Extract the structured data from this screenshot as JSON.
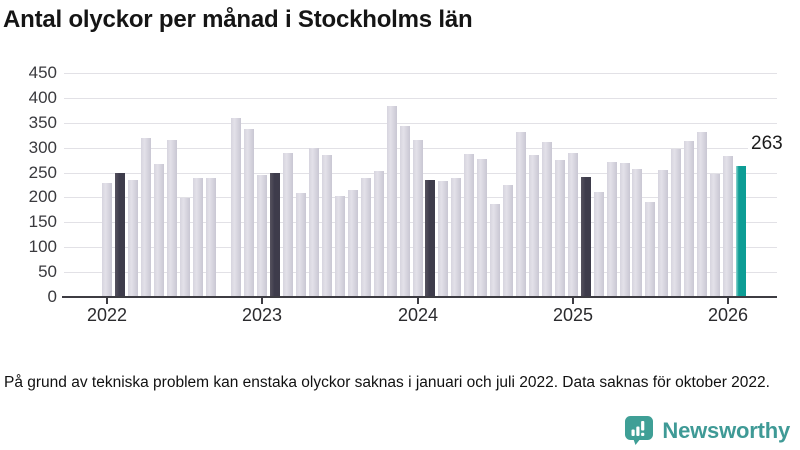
{
  "title": "Antal olyckor per månad i Stockholms län",
  "footnote": "På grund av tekniska problem kan enstaka olyckor saknas i januari och juli 2022. Data saknas för oktober 2022.",
  "annotation": {
    "value_label": "263"
  },
  "brand": {
    "name": "Newsworthy",
    "color": "#3f9a96",
    "icon": "bar-chart-speech-bubble-icon"
  },
  "colors": {
    "bar_default": "#cac8d4",
    "bar_highlight_dark": "#3e3c4b",
    "bar_latest_teal": "#0d9d95",
    "gridline": "#e2e1e6",
    "axis": "#3d3c42"
  },
  "chart_data": {
    "type": "bar",
    "title": "Antal olyckor per månad i Stockholms län",
    "xlabel": "",
    "ylabel": "",
    "ylim": [
      0,
      450
    ],
    "y_ticks": [
      0,
      50,
      100,
      150,
      200,
      250,
      300,
      350,
      400,
      450
    ],
    "grid": true,
    "x_tick_labels": [
      "2022",
      "2023",
      "2024",
      "2025",
      "2026"
    ],
    "legend": "none",
    "annotated_point": {
      "month": "2026-02",
      "value": 263
    },
    "months": [
      {
        "month": "2022-01",
        "value": 230
      },
      {
        "month": "2022-02",
        "value": 249,
        "highlight": "dark"
      },
      {
        "month": "2022-03",
        "value": 235
      },
      {
        "month": "2022-04",
        "value": 320
      },
      {
        "month": "2022-05",
        "value": 267
      },
      {
        "month": "2022-06",
        "value": 315
      },
      {
        "month": "2022-07",
        "value": 198
      },
      {
        "month": "2022-08",
        "value": 240
      },
      {
        "month": "2022-09",
        "value": 239
      },
      {
        "month": "2022-10",
        "value": null,
        "missing": true
      },
      {
        "month": "2022-11",
        "value": 360
      },
      {
        "month": "2022-12",
        "value": 338
      },
      {
        "month": "2023-01",
        "value": 245
      },
      {
        "month": "2023-02",
        "value": 249,
        "highlight": "dark"
      },
      {
        "month": "2023-03",
        "value": 290
      },
      {
        "month": "2023-04",
        "value": 209
      },
      {
        "month": "2023-05",
        "value": 299
      },
      {
        "month": "2023-06",
        "value": 286
      },
      {
        "month": "2023-07",
        "value": 202
      },
      {
        "month": "2023-08",
        "value": 214
      },
      {
        "month": "2023-09",
        "value": 239
      },
      {
        "month": "2023-10",
        "value": 253
      },
      {
        "month": "2023-11",
        "value": 383
      },
      {
        "month": "2023-12",
        "value": 343
      },
      {
        "month": "2024-01",
        "value": 315
      },
      {
        "month": "2024-02",
        "value": 236,
        "highlight": "dark"
      },
      {
        "month": "2024-03",
        "value": 233
      },
      {
        "month": "2024-04",
        "value": 239
      },
      {
        "month": "2024-05",
        "value": 287
      },
      {
        "month": "2024-06",
        "value": 277
      },
      {
        "month": "2024-07",
        "value": 186
      },
      {
        "month": "2024-08",
        "value": 224
      },
      {
        "month": "2024-09",
        "value": 331
      },
      {
        "month": "2024-10",
        "value": 285
      },
      {
        "month": "2024-11",
        "value": 311
      },
      {
        "month": "2024-12",
        "value": 275
      },
      {
        "month": "2025-01",
        "value": 289
      },
      {
        "month": "2025-02",
        "value": 242,
        "highlight": "dark"
      },
      {
        "month": "2025-03",
        "value": 211
      },
      {
        "month": "2025-04",
        "value": 271
      },
      {
        "month": "2025-05",
        "value": 269
      },
      {
        "month": "2025-06",
        "value": 258
      },
      {
        "month": "2025-07",
        "value": 191
      },
      {
        "month": "2025-08",
        "value": 256
      },
      {
        "month": "2025-09",
        "value": 297
      },
      {
        "month": "2025-10",
        "value": 314
      },
      {
        "month": "2025-11",
        "value": 332
      },
      {
        "month": "2025-12",
        "value": 248
      },
      {
        "month": "2026-01",
        "value": 283
      },
      {
        "month": "2026-02",
        "value": 263,
        "highlight": "teal"
      }
    ]
  }
}
